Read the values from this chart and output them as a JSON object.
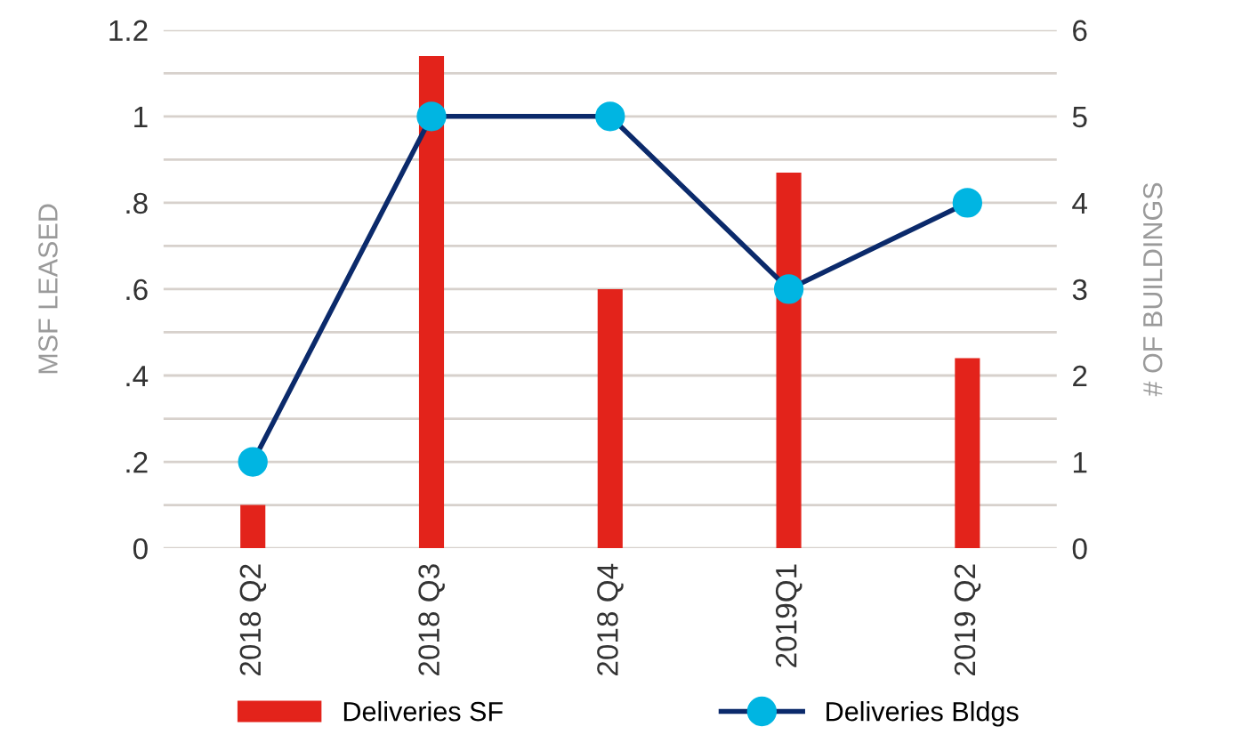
{
  "chart_data": {
    "type": "bar",
    "categories": [
      "2018 Q2",
      "2018 Q3",
      "2018 Q4",
      "2019Q1",
      "2019 Q2"
    ],
    "ylabel": "MSF LEASED",
    "y2label": "# OF BUILDINGS",
    "series": [
      {
        "name": "Deliveries SF",
        "color": "#e3231b",
        "values": [
          0.1,
          1.14,
          0.6,
          0.87,
          0.44
        ]
      },
      {
        "name": "Deliveries Bldgs",
        "type": "line",
        "axis": "y2",
        "color": "#0b2a6b",
        "marker": "circle",
        "colors": [
          "#00b5e2",
          "#00b5e2",
          "#00b5e2",
          "#00b5e2",
          "#00b5e2"
        ],
        "values": [
          1,
          5,
          5,
          3,
          4
        ]
      }
    ],
    "ylim": [
      0,
      1.2
    ],
    "yticks": [
      0,
      {
        "value": 0.1,
        "label": null
      },
      {
        "value": 0.2,
        "label": ".2"
      },
      {
        "value": 0.3,
        "label": null
      },
      {
        "value": 0.4,
        "label": ".4"
      },
      {
        "value": 0.5,
        "label": null
      },
      {
        "value": 0.6,
        "label": ".6"
      },
      {
        "value": 0.7,
        "label": null
      },
      {
        "value": 0.8,
        "label": ".8"
      },
      {
        "value": 0.9,
        "label": null
      },
      1,
      {
        "value": 1.1,
        "label": null
      },
      1.2
    ],
    "y2lim": [
      0,
      6
    ],
    "y2ticks": [
      0,
      1,
      2,
      3,
      4,
      5,
      6
    ],
    "grid": "y",
    "legend": "bottom"
  }
}
